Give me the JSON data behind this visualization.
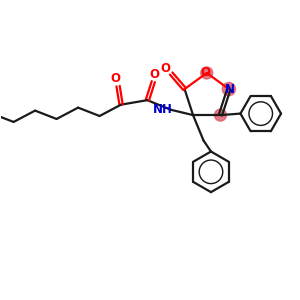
{
  "bg_color": "#ffffff",
  "bond_color": "#1a1a1a",
  "oxygen_color": "#ff0000",
  "nitrogen_color": "#0000cd",
  "highlight_color": "#e06070",
  "bond_width": 1.6,
  "fig_width": 3.0,
  "fig_height": 3.0,
  "dpi": 100,
  "xlim": [
    0,
    10
  ],
  "ylim": [
    0,
    10
  ]
}
